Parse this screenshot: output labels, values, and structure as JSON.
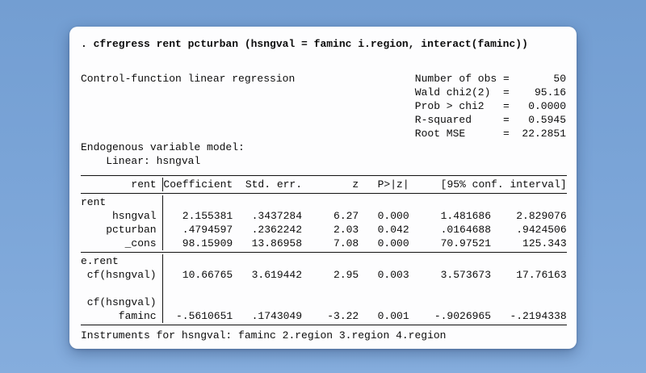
{
  "terminal": {
    "command": ". cfregress rent pcturban (hsngval = faminc i.region, interact(faminc))",
    "model_title": "Control-function linear regression",
    "eq": "=",
    "stats": [
      {
        "label": "Number of obs",
        "value": "50"
      },
      {
        "label": "Wald chi2(2)",
        "value": "95.16"
      },
      {
        "label": "Prob > chi2",
        "value": "0.0000"
      },
      {
        "label": "R-squared",
        "value": "0.5945"
      },
      {
        "label": "Root MSE",
        "value": "22.2851"
      }
    ],
    "endogenous_heading": "Endogenous variable model:",
    "endogenous_detail": "Linear: hsngval",
    "table": {
      "header": {
        "depvar": "rent",
        "coef": "Coefficient",
        "stderr": "Std. err.",
        "z": "z",
        "p": "P>|z|",
        "ci": "[95% conf. interval]"
      },
      "rows": {
        "rent_group": {
          "label": "rent"
        },
        "hsngval": {
          "label": "hsngval",
          "coef": "2.155381",
          "se": ".3437284",
          "z": "6.27",
          "p": "0.000",
          "ci_lo": "1.481686",
          "ci_hi": "2.829076"
        },
        "pcturban": {
          "label": "pcturban",
          "coef": ".4794597",
          "se": ".2362242",
          "z": "2.03",
          "p": "0.042",
          "ci_lo": ".0164688",
          "ci_hi": ".9424506"
        },
        "cons": {
          "label": "_cons",
          "coef": "98.15909",
          "se": "13.86958",
          "z": "7.08",
          "p": "0.000",
          "ci_lo": "70.97521",
          "ci_hi": "125.343"
        },
        "e_rent_group": {
          "label": "e.rent"
        },
        "cf_hsngval": {
          "label": "cf(hsngval)",
          "coef": "10.66765",
          "se": "3.619442",
          "z": "2.95",
          "p": "0.003",
          "ci_lo": "3.573673",
          "ci_hi": "17.76163"
        },
        "cf_group": {
          "label": "cf(hsngval)"
        },
        "faminc": {
          "label": "faminc",
          "coef": "-.5610651",
          "se": ".1743049",
          "z": "-3.22",
          "p": "0.001",
          "ci_lo": "-.9026965",
          "ci_hi": "-.2194338"
        }
      }
    },
    "footer": "Instruments for hsngval: faminc 2.region 3.region 4.region"
  },
  "colors": {
    "background_top": "#739ed2",
    "background_bottom": "#85addd",
    "card": "#fdfdfe",
    "text": "#0c0c0c",
    "rule": "#111111"
  }
}
